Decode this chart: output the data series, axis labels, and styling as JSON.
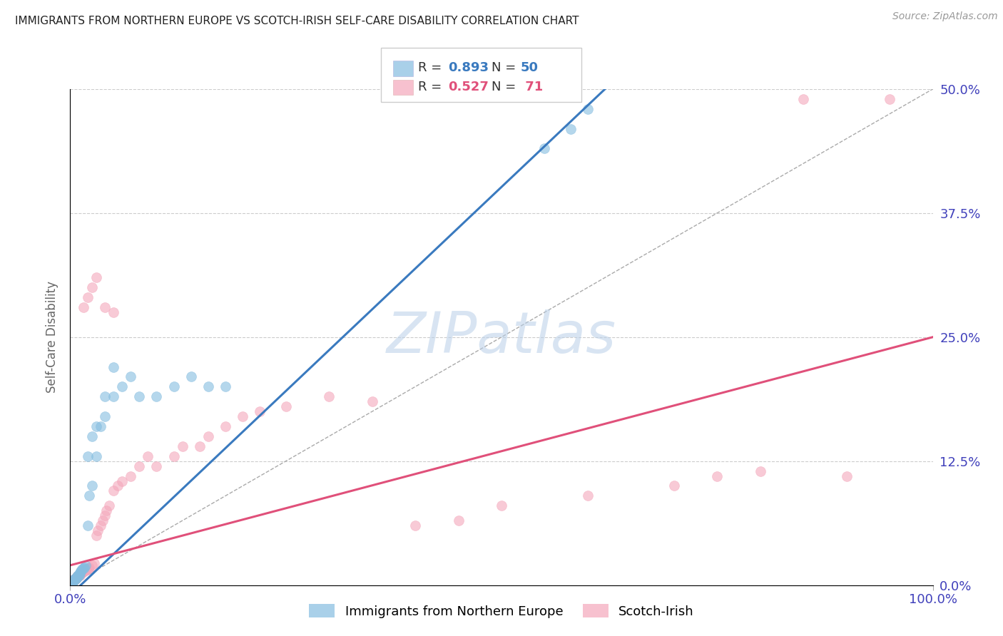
{
  "title": "IMMIGRANTS FROM NORTHERN EUROPE VS SCOTCH-IRISH SELF-CARE DISABILITY CORRELATION CHART",
  "source": "Source: ZipAtlas.com",
  "ylabel": "Self-Care Disability",
  "watermark": "ZIPatlas",
  "bg_color": "#ffffff",
  "grid_color": "#cccccc",
  "blue_color": "#85bde0",
  "pink_color": "#f4a7bb",
  "blue_line_color": "#3a7abf",
  "pink_line_color": "#e0507a",
  "axis_color": "#4040bb",
  "ytick_labels": [
    "0.0%",
    "12.5%",
    "25.0%",
    "37.5%",
    "50.0%"
  ],
  "ytick_values": [
    0.0,
    0.125,
    0.25,
    0.375,
    0.5
  ],
  "blue_scatter_x": [
    0.001,
    0.002,
    0.002,
    0.003,
    0.003,
    0.004,
    0.004,
    0.005,
    0.005,
    0.006,
    0.006,
    0.007,
    0.007,
    0.008,
    0.008,
    0.009,
    0.009,
    0.01,
    0.01,
    0.011,
    0.011,
    0.012,
    0.013,
    0.014,
    0.015,
    0.016,
    0.018,
    0.02,
    0.022,
    0.025,
    0.03,
    0.035,
    0.04,
    0.05,
    0.06,
    0.07,
    0.08,
    0.1,
    0.12,
    0.14,
    0.16,
    0.18,
    0.02,
    0.025,
    0.03,
    0.04,
    0.05,
    0.55,
    0.58,
    0.6
  ],
  "blue_scatter_y": [
    0.001,
    0.002,
    0.003,
    0.003,
    0.004,
    0.004,
    0.005,
    0.005,
    0.006,
    0.006,
    0.007,
    0.007,
    0.008,
    0.008,
    0.009,
    0.009,
    0.01,
    0.01,
    0.011,
    0.012,
    0.013,
    0.014,
    0.015,
    0.016,
    0.017,
    0.018,
    0.02,
    0.06,
    0.09,
    0.1,
    0.13,
    0.16,
    0.17,
    0.19,
    0.2,
    0.21,
    0.19,
    0.19,
    0.2,
    0.21,
    0.2,
    0.2,
    0.13,
    0.15,
    0.16,
    0.19,
    0.22,
    0.44,
    0.46,
    0.48
  ],
  "pink_scatter_x": [
    0.001,
    0.002,
    0.002,
    0.003,
    0.003,
    0.004,
    0.004,
    0.005,
    0.005,
    0.006,
    0.006,
    0.007,
    0.007,
    0.008,
    0.008,
    0.009,
    0.01,
    0.011,
    0.012,
    0.013,
    0.014,
    0.015,
    0.016,
    0.017,
    0.018,
    0.019,
    0.02,
    0.021,
    0.022,
    0.025,
    0.028,
    0.03,
    0.032,
    0.035,
    0.038,
    0.04,
    0.042,
    0.045,
    0.05,
    0.055,
    0.06,
    0.07,
    0.08,
    0.09,
    0.1,
    0.12,
    0.13,
    0.15,
    0.16,
    0.18,
    0.2,
    0.22,
    0.25,
    0.3,
    0.35,
    0.4,
    0.45,
    0.5,
    0.6,
    0.7,
    0.75,
    0.8,
    0.85,
    0.015,
    0.02,
    0.025,
    0.03,
    0.04,
    0.05,
    0.9,
    0.95
  ],
  "pink_scatter_y": [
    0.001,
    0.002,
    0.003,
    0.003,
    0.004,
    0.004,
    0.005,
    0.005,
    0.006,
    0.006,
    0.007,
    0.007,
    0.008,
    0.008,
    0.009,
    0.009,
    0.01,
    0.01,
    0.011,
    0.012,
    0.013,
    0.014,
    0.014,
    0.015,
    0.015,
    0.016,
    0.016,
    0.017,
    0.018,
    0.02,
    0.022,
    0.05,
    0.055,
    0.06,
    0.065,
    0.07,
    0.075,
    0.08,
    0.095,
    0.1,
    0.105,
    0.11,
    0.12,
    0.13,
    0.12,
    0.13,
    0.14,
    0.14,
    0.15,
    0.16,
    0.17,
    0.175,
    0.18,
    0.19,
    0.185,
    0.06,
    0.065,
    0.08,
    0.09,
    0.1,
    0.11,
    0.115,
    0.49,
    0.28,
    0.29,
    0.3,
    0.31,
    0.28,
    0.275,
    0.11,
    0.49
  ],
  "blue_line": {
    "x0": 0.0,
    "y0": -0.01,
    "x1": 0.62,
    "y1": 0.5
  },
  "pink_line": {
    "x0": 0.0,
    "y0": 0.02,
    "x1": 1.0,
    "y1": 0.25
  },
  "ref_line": {
    "x0": 0.0,
    "y0": 0.0,
    "x1": 1.0,
    "y1": 0.5
  },
  "xlim": [
    0.0,
    1.0
  ],
  "ylim": [
    0.0,
    0.5
  ]
}
